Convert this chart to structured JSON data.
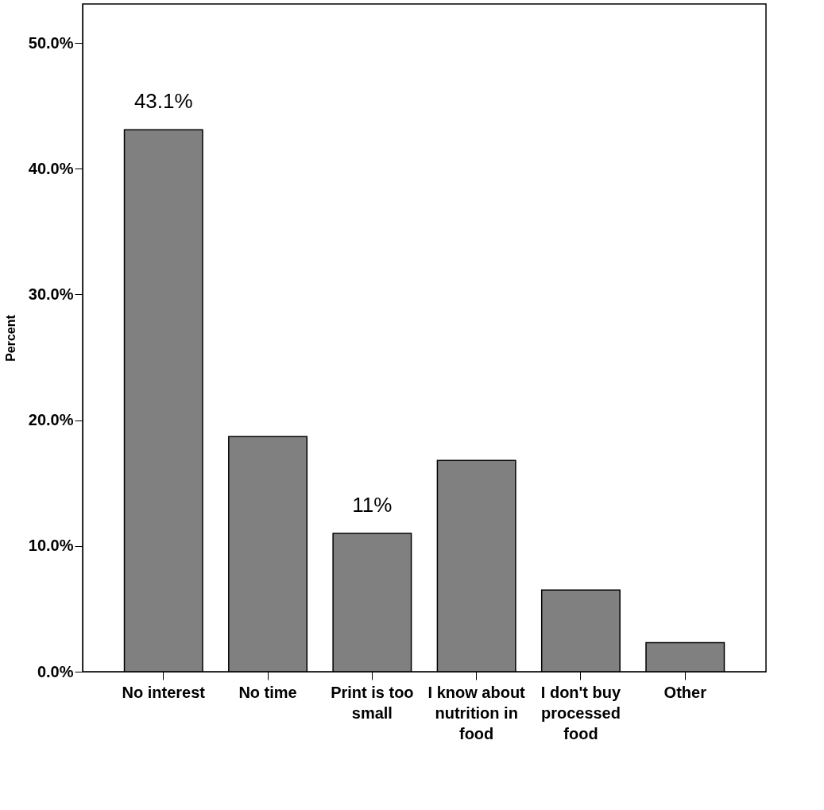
{
  "chart_data": {
    "type": "bar",
    "ylabel": "Percent",
    "categories": [
      "No interest",
      "No time",
      "Print is too small",
      "I know about nutrition in food",
      "I don't buy processed food",
      "Other"
    ],
    "values": [
      43.1,
      18.7,
      11.0,
      16.8,
      6.5,
      2.3
    ],
    "value_labels": [
      "43.1%",
      null,
      "11%",
      null,
      null,
      null
    ],
    "color": "#808080",
    "ylim": [
      0,
      53.1
    ],
    "yticks": [
      {
        "value": 0,
        "label": "0.0%"
      },
      {
        "value": 10,
        "label": "10.0%"
      },
      {
        "value": 20,
        "label": "20.0%"
      },
      {
        "value": 30,
        "label": "30.0%"
      },
      {
        "value": 40,
        "label": "40.0%"
      },
      {
        "value": 50,
        "label": "50.0%"
      }
    ],
    "grid": false
  }
}
